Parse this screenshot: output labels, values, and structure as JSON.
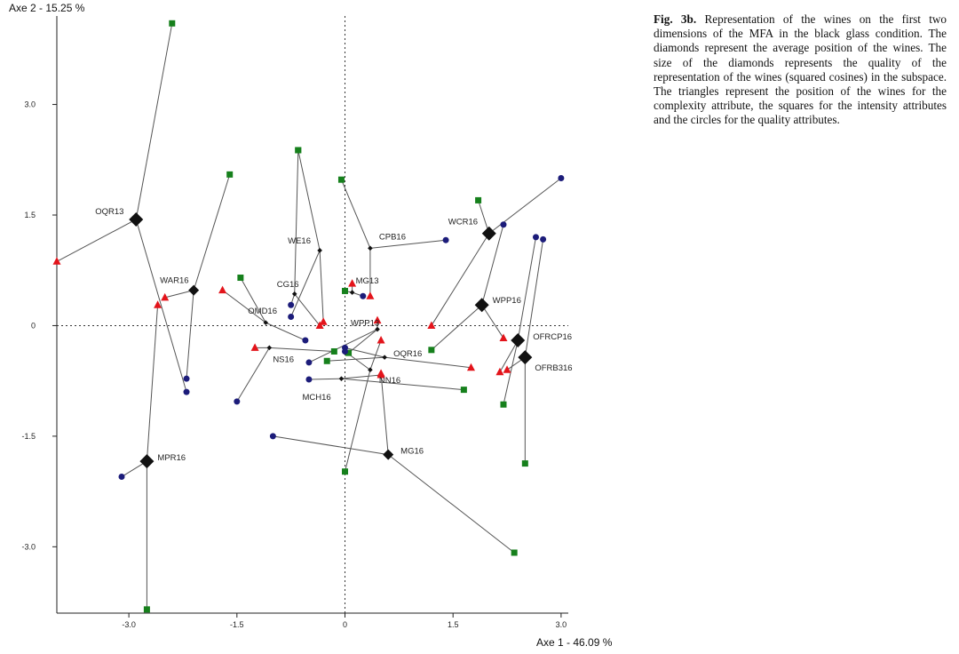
{
  "caption": {
    "label": "Fig. 3b.",
    "text": "Representation of the wines on the first two dimensions of the MFA in the black glass condition. The diamonds represent the average position of the wines. The size of the diamonds represents the quality of the representation of the wines (squared cosines) in the subspace. The triangles represent the position of the wines for the complexity attribute, the squares for the intensity attributes and the circles for the quality attributes."
  },
  "chart_data": {
    "type": "scatter",
    "xlabel": "Axe 1  -  46.09 %",
    "ylabel": "Axe 2  -  15.25 %",
    "xlim": [
      -4.0,
      3.1
    ],
    "ylim": [
      -3.9,
      4.2
    ],
    "xticks": [
      -3.0,
      -1.5,
      0,
      1.5,
      3.0
    ],
    "xtick_labels": [
      "-3.0",
      "-1.5",
      "0",
      "1.5",
      "3.0"
    ],
    "yticks": [
      3.0,
      1.5,
      0,
      -1.5,
      -3.0
    ],
    "ytick_labels": [
      "3.0",
      "1.5",
      "0",
      "-1.5",
      "-3.0"
    ],
    "grid": false,
    "origin_lines": "dashed",
    "colors": {
      "complexity": "#e3141b",
      "intensity": "#16801c",
      "quality": "#1c1c7a",
      "mean": "#111111",
      "link": "#555555"
    },
    "wines": [
      {
        "name": "OQR13",
        "mean": [
          -2.9,
          1.44
        ],
        "size": "large",
        "complexity": [
          -4.0,
          0.87
        ],
        "intensity": [
          -2.4,
          4.1
        ],
        "quality": [
          -2.2,
          -0.9
        ]
      },
      {
        "name": "WAR16",
        "mean": [
          -2.1,
          0.48
        ],
        "size": "medium",
        "complexity": [
          -2.5,
          0.38
        ],
        "intensity": [
          -1.6,
          2.05
        ],
        "quality": [
          -2.2,
          -0.72
        ]
      },
      {
        "name": "MPR16",
        "mean": [
          -2.75,
          -1.84
        ],
        "size": "large",
        "complexity": [
          -2.6,
          0.28
        ],
        "intensity": [
          -2.75,
          -3.85
        ],
        "quality": [
          -3.1,
          -2.05
        ]
      },
      {
        "name": "OMD16",
        "mean": [
          -1.1,
          0.04
        ],
        "size": "small",
        "complexity": [
          -1.7,
          0.48
        ],
        "intensity": [
          -1.45,
          0.65
        ],
        "quality": [
          -0.55,
          -0.2
        ]
      },
      {
        "name": "NS16",
        "mean": [
          -1.05,
          -0.3
        ],
        "size": "small",
        "complexity": [
          -1.25,
          -0.3
        ],
        "intensity": [
          -0.15,
          -0.35
        ],
        "quality": [
          -1.5,
          -1.03
        ]
      },
      {
        "name": "CG16",
        "mean": [
          -0.7,
          0.43
        ],
        "size": "small",
        "complexity": [
          -0.35,
          0.0
        ],
        "intensity": [
          -0.65,
          2.38
        ],
        "quality": [
          -0.75,
          0.28
        ]
      },
      {
        "name": "WE16",
        "mean": [
          -0.35,
          1.02
        ],
        "size": "small",
        "complexity": [
          -0.3,
          0.05
        ],
        "intensity": [
          -0.65,
          2.38
        ],
        "quality": [
          -0.75,
          0.12
        ]
      },
      {
        "name": "CPB16",
        "mean": [
          0.35,
          1.05
        ],
        "size": "small",
        "complexity": [
          0.35,
          0.4
        ],
        "intensity": [
          -0.05,
          1.98
        ],
        "quality": [
          1.4,
          1.16
        ]
      },
      {
        "name": "MG13",
        "mean": [
          0.1,
          0.45
        ],
        "size": "small",
        "complexity": [
          0.1,
          0.57
        ],
        "intensity": [
          0.0,
          0.47
        ],
        "quality": [
          0.25,
          0.4
        ]
      },
      {
        "name": "WPP13",
        "mean": [
          0.45,
          -0.05
        ],
        "size": "small",
        "complexity": [
          0.45,
          0.07
        ],
        "intensity": [
          0.05,
          -0.37
        ],
        "quality": [
          -0.5,
          -0.5
        ]
      },
      {
        "name": "OQR16",
        "mean": [
          0.55,
          -0.43
        ],
        "size": "small",
        "complexity": [
          1.75,
          -0.57
        ],
        "intensity": [
          -0.25,
          -0.48
        ],
        "quality": [
          0.0,
          -0.3
        ]
      },
      {
        "name": "MCH16",
        "mean": [
          -0.05,
          -0.72
        ],
        "size": "small",
        "complexity": [
          0.5,
          -0.67
        ],
        "intensity": [
          1.65,
          -0.87
        ],
        "quality": [
          -0.5,
          -0.73
        ]
      },
      {
        "name": "NN16",
        "mean": [
          0.35,
          -0.6
        ],
        "size": "small",
        "complexity": [
          0.5,
          -0.2
        ],
        "intensity": [
          0.0,
          -1.98
        ],
        "quality": [
          0.0,
          -0.35
        ]
      },
      {
        "name": "MG16",
        "mean": [
          0.6,
          -1.75
        ],
        "size": "medium",
        "complexity": [
          0.5,
          -0.65
        ],
        "intensity": [
          2.35,
          -3.08
        ],
        "quality": [
          -1.0,
          -1.5
        ]
      },
      {
        "name": "WCR16",
        "mean": [
          2.0,
          1.25
        ],
        "size": "large",
        "complexity": [
          1.2,
          0.0
        ],
        "intensity": [
          1.85,
          1.7
        ],
        "quality": [
          3.0,
          2.0
        ]
      },
      {
        "name": "WPP16",
        "mean": [
          1.9,
          0.28
        ],
        "size": "large",
        "complexity": [
          2.2,
          -0.17
        ],
        "intensity": [
          1.2,
          -0.33
        ],
        "quality": [
          2.2,
          1.37
        ]
      },
      {
        "name": "OFRCP16",
        "mean": [
          2.4,
          -0.2
        ],
        "size": "large",
        "complexity": [
          2.15,
          -0.63
        ],
        "intensity": [
          2.2,
          -1.07
        ],
        "quality": [
          2.65,
          1.2
        ]
      },
      {
        "name": "OFRB316",
        "mean": [
          2.5,
          -0.43
        ],
        "size": "large",
        "complexity": [
          2.25,
          -0.6
        ],
        "intensity": [
          2.5,
          -1.87
        ],
        "quality": [
          2.75,
          1.17
        ]
      }
    ]
  }
}
